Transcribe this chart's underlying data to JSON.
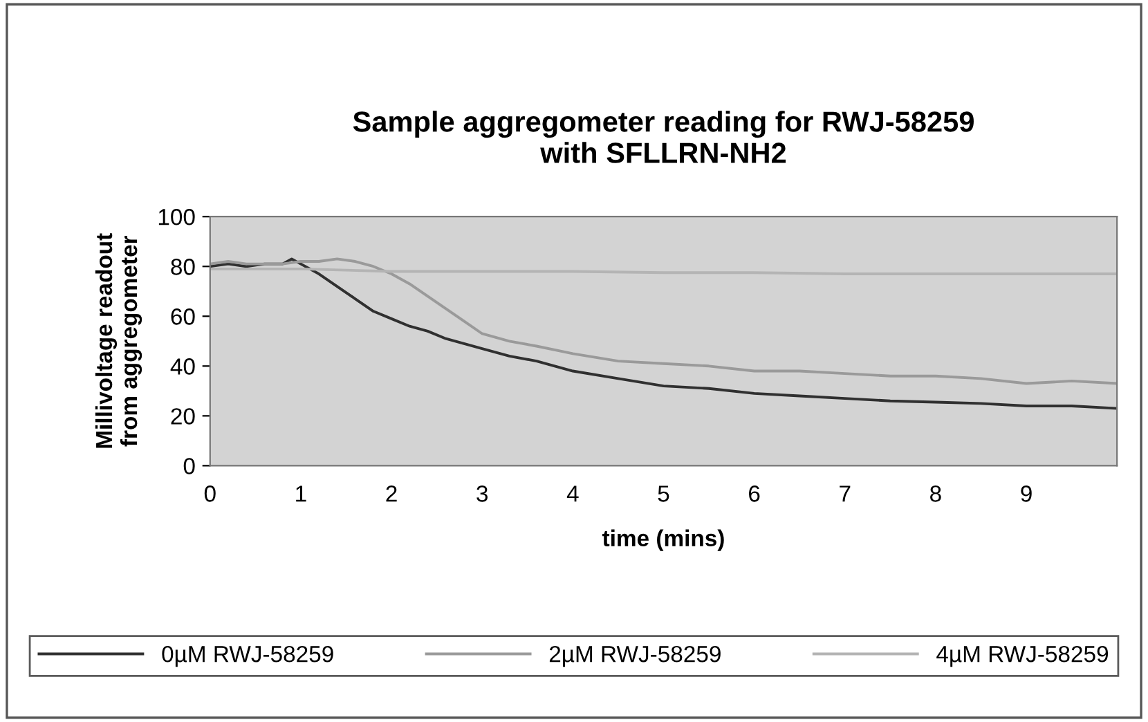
{
  "chart_data": {
    "type": "line",
    "title": "Sample aggregometer reading for RWJ-58259\nwith SFLLRN-NH2",
    "xlabel": "time (mins)",
    "ylabel": "Millivoltage readout\nfrom aggregometer",
    "xlim": [
      0,
      10
    ],
    "xticks": [
      0,
      1,
      2,
      3,
      4,
      5,
      6,
      7,
      8,
      9
    ],
    "ylim": [
      0,
      100
    ],
    "yticks": [
      0,
      20,
      40,
      60,
      80,
      100
    ],
    "grid": false,
    "legend": "bottom",
    "marker": "none",
    "line_style": "solid",
    "series": [
      {
        "name": "0µM RWJ-58259",
        "color": "#303030",
        "x": [
          0,
          0.2,
          0.4,
          0.6,
          0.8,
          0.9,
          1.0,
          1.2,
          1.4,
          1.6,
          1.8,
          2.0,
          2.2,
          2.4,
          2.6,
          2.8,
          3.0,
          3.3,
          3.6,
          4.0,
          4.5,
          5.0,
          5.5,
          6.0,
          6.5,
          7.0,
          7.5,
          8.0,
          8.5,
          9.0,
          9.5,
          10.0
        ],
        "values": [
          80,
          81,
          80,
          81,
          81,
          83,
          81,
          77,
          72,
          67,
          62,
          59,
          56,
          54,
          51,
          49,
          47,
          44,
          42,
          38,
          35,
          32,
          31,
          29,
          28,
          27,
          26,
          25.5,
          25,
          24,
          24,
          23
        ]
      },
      {
        "name": "2µM RWJ-58259",
        "color": "#9a9a9a",
        "x": [
          0,
          0.2,
          0.4,
          0.6,
          0.8,
          1.0,
          1.2,
          1.4,
          1.6,
          1.8,
          2.0,
          2.2,
          2.4,
          2.6,
          2.8,
          3.0,
          3.3,
          3.6,
          4.0,
          4.5,
          5.0,
          5.5,
          6.0,
          6.5,
          7.0,
          7.5,
          8.0,
          8.5,
          9.0,
          9.5,
          10.0
        ],
        "values": [
          81,
          82,
          81,
          81,
          81,
          82,
          82,
          83,
          82,
          80,
          77,
          73,
          68,
          63,
          58,
          53,
          50,
          48,
          45,
          42,
          41,
          40,
          38,
          38,
          37,
          36,
          36,
          35,
          33,
          34,
          33
        ]
      },
      {
        "name": "4µM RWJ-58259",
        "color": "#b4b4b4",
        "x": [
          0,
          0.5,
          1.0,
          1.5,
          2.0,
          3.0,
          4.0,
          5.0,
          6.0,
          7.0,
          8.0,
          9.0,
          10.0
        ],
        "values": [
          79,
          79,
          79,
          78.5,
          78,
          78,
          78,
          77.5,
          77.5,
          77,
          77,
          77,
          77
        ]
      }
    ]
  }
}
